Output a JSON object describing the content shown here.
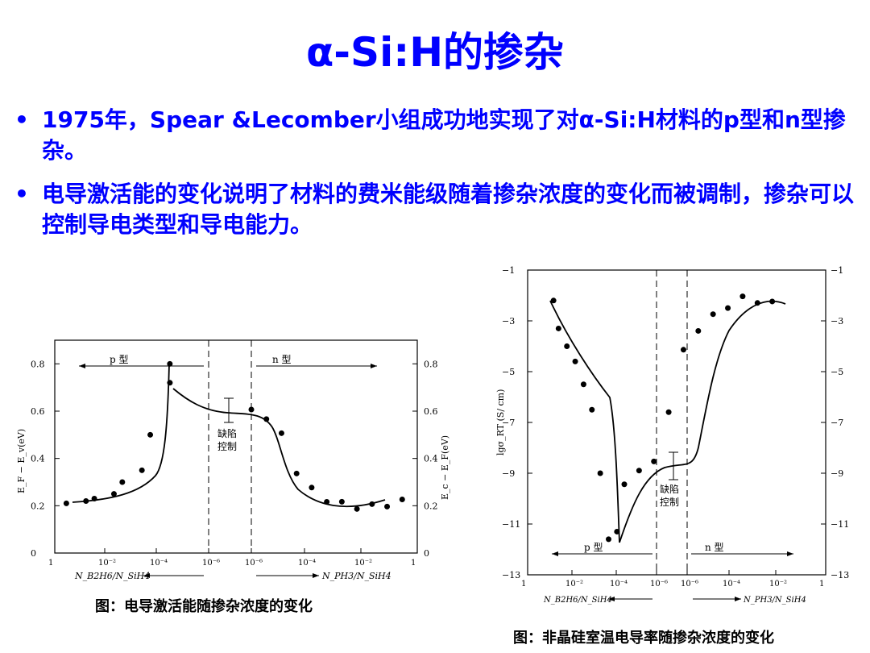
{
  "slide": {
    "title": "α-Si:H的掺杂",
    "bullets": [
      "1975年，Spear &Lecomber小组成功地实现了对α-Si:H材料的p型和n型掺杂。",
      "电导激活能的变化说明了材料的费米能级随着掺杂浓度的变化而被调制，掺杂可以控制导电类型和导电能力。"
    ],
    "bullet_marker": "•"
  },
  "left_figure": {
    "caption": "图：电导激活能随掺杂浓度的变化",
    "region_p": "p 型",
    "region_n": "n 型",
    "defect_label": [
      "缺陷",
      "控制"
    ],
    "ylabel_left": "E_F − E_v(eV)",
    "ylabel_right": "E_c − E_F(eV)",
    "xlabel_left": "N_B2H6/N_SiH4",
    "xlabel_right": "N_PH3/N_SiH4",
    "y_ticks": [
      "0",
      "0.2",
      "0.4",
      "0.6",
      "0.8"
    ],
    "x_ticks": [
      "1",
      "10⁻²",
      "10⁻⁴",
      "10⁻⁶",
      "10⁻⁶",
      "10⁻⁴",
      "10⁻²",
      "1"
    ]
  },
  "right_figure": {
    "caption": "图：非晶硅室温电导率随掺杂浓度的变化",
    "region_p": "p 型",
    "region_n": "n 型",
    "defect_label": [
      "缺陷",
      "控制"
    ],
    "ylabel": "lgσ_RT (S/ cm)",
    "xlabel_left": "N_B2H6/N_SiH4",
    "xlabel_right": "N_PH3/N_SiH4",
    "y_ticks": [
      "−1",
      "−3",
      "−5",
      "−7",
      "−9",
      "−11",
      "−13"
    ],
    "x_ticks": [
      "1",
      "10⁻²",
      "10⁻⁴",
      "10⁻⁶",
      "10⁻⁶",
      "10⁻⁴",
      "10⁻²",
      "1"
    ]
  },
  "chart_data": [
    {
      "type": "scatter",
      "title": "",
      "ylabel": "E_F − E_v(eV)",
      "ylim": [
        0,
        0.9
      ],
      "p_side_x_log10_B2H6": [
        -0.5,
        -1,
        -1.5,
        -2,
        -2.5,
        -3,
        -3.5,
        -4,
        -4.2
      ],
      "p_side_y": [
        0.21,
        0.22,
        0.23,
        0.25,
        0.3,
        0.35,
        0.5,
        0.72,
        0.8
      ],
      "n_side_x_log10_PH3": [
        -5.5,
        -5,
        -4.5,
        -4,
        -3.5,
        -3,
        -2.5,
        -2,
        -1.5,
        -1,
        -0.5
      ],
      "n_side_y": [
        0.6,
        0.58,
        0.5,
        0.35,
        0.27,
        0.23,
        0.21,
        0.2,
        0.2,
        0.21,
        0.22
      ]
    },
    {
      "type": "scatter",
      "title": "",
      "ylabel": "lgσ_RT (S/ cm)",
      "ylim": [
        -13,
        -1
      ],
      "p_side_x_log10_B2H6": [
        -0.2,
        -0.5,
        -1,
        -1.5,
        -2,
        -2.5,
        -3,
        -3.5,
        -4
      ],
      "p_side_y": [
        -2.2,
        -3.3,
        -4,
        -4.6,
        -5.5,
        -6.5,
        -9,
        -11.6,
        -11.3
      ],
      "n_side_x_log10_PH3": [
        -5.5,
        -5,
        -4.5,
        -4,
        -3.5,
        -3,
        -2.5,
        -2,
        -1.5,
        -1,
        -0.5
      ],
      "n_side_y": [
        -9.5,
        -8.8,
        -8.6,
        -6.5,
        -4.2,
        -3.3,
        -2.8,
        -2.4,
        -2.1,
        -2.2,
        -2.3
      ]
    }
  ]
}
